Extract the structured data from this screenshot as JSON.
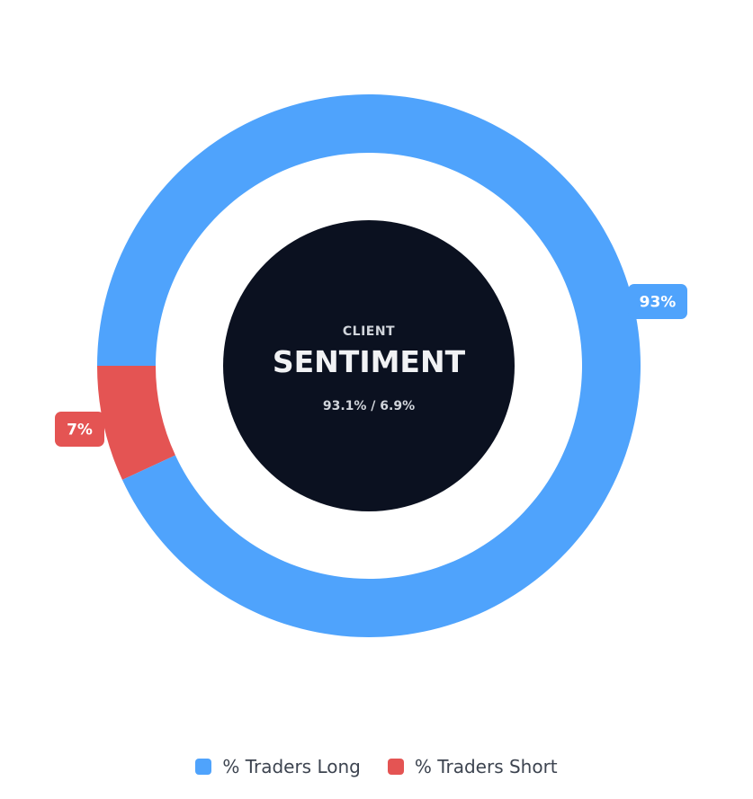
{
  "chart_data": {
    "type": "pie",
    "variant": "donut",
    "center": {
      "caption": "CLIENT",
      "title": "SENTIMENT",
      "ratio_text": "93.1% / 6.9%"
    },
    "series": [
      {
        "name": "% Traders Long",
        "value": 93.1,
        "label": "93%",
        "color": "#4fa3fc"
      },
      {
        "name": "% Traders Short",
        "value": 6.9,
        "label": "7%",
        "color": "#e45453"
      }
    ],
    "legend": {
      "position": "bottom"
    }
  },
  "colors": {
    "center_fill": "#0b1120",
    "center_text_small": "#d1d5db",
    "center_text_big": "#f1f2f4"
  }
}
